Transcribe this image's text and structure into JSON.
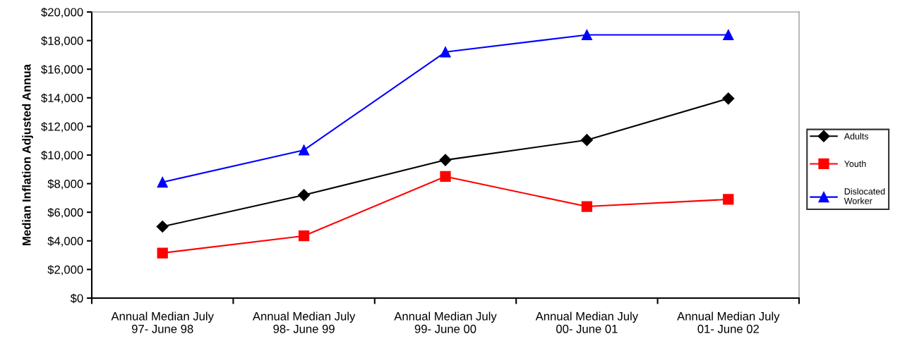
{
  "chart_data": {
    "type": "line",
    "ylabel": "Median Inflation Adjusted Annua",
    "categories": [
      "Annual Median July\n97- June 98",
      "Annual Median July\n98- June 99",
      "Annual Median July\n99- June 00",
      "Annual Median July\n00- June 01",
      "Annual Median July\n01- June 02"
    ],
    "series": [
      {
        "name": "Adults",
        "color": "#000000",
        "marker": "diamond",
        "values": [
          5000,
          7200,
          9650,
          11050,
          13950
        ]
      },
      {
        "name": "Youth",
        "color": "#ff0000",
        "marker": "square",
        "values": [
          3150,
          4350,
          8500,
          6400,
          6900
        ]
      },
      {
        "name": "Dislocated\nWorker",
        "color": "#0000ff",
        "marker": "triangle",
        "values": [
          8100,
          10350,
          17200,
          18400,
          18400
        ]
      }
    ],
    "ylim": [
      0,
      20000
    ],
    "yticks": [
      {
        "value": 0,
        "label": "$0"
      },
      {
        "value": 2000,
        "label": "$2,000"
      },
      {
        "value": 4000,
        "label": "$4,000"
      },
      {
        "value": 6000,
        "label": "$6,000"
      },
      {
        "value": 8000,
        "label": "$8,000"
      },
      {
        "value": 10000,
        "label": "$10,000"
      },
      {
        "value": 12000,
        "label": "$12,000"
      },
      {
        "value": 14000,
        "label": "$14,000"
      },
      {
        "value": 16000,
        "label": "$16,000"
      },
      {
        "value": 18000,
        "label": "$18,000"
      },
      {
        "value": 20000,
        "label": "$20,000"
      }
    ],
    "grid": false,
    "legend": "right",
    "line_style": "solid"
  }
}
